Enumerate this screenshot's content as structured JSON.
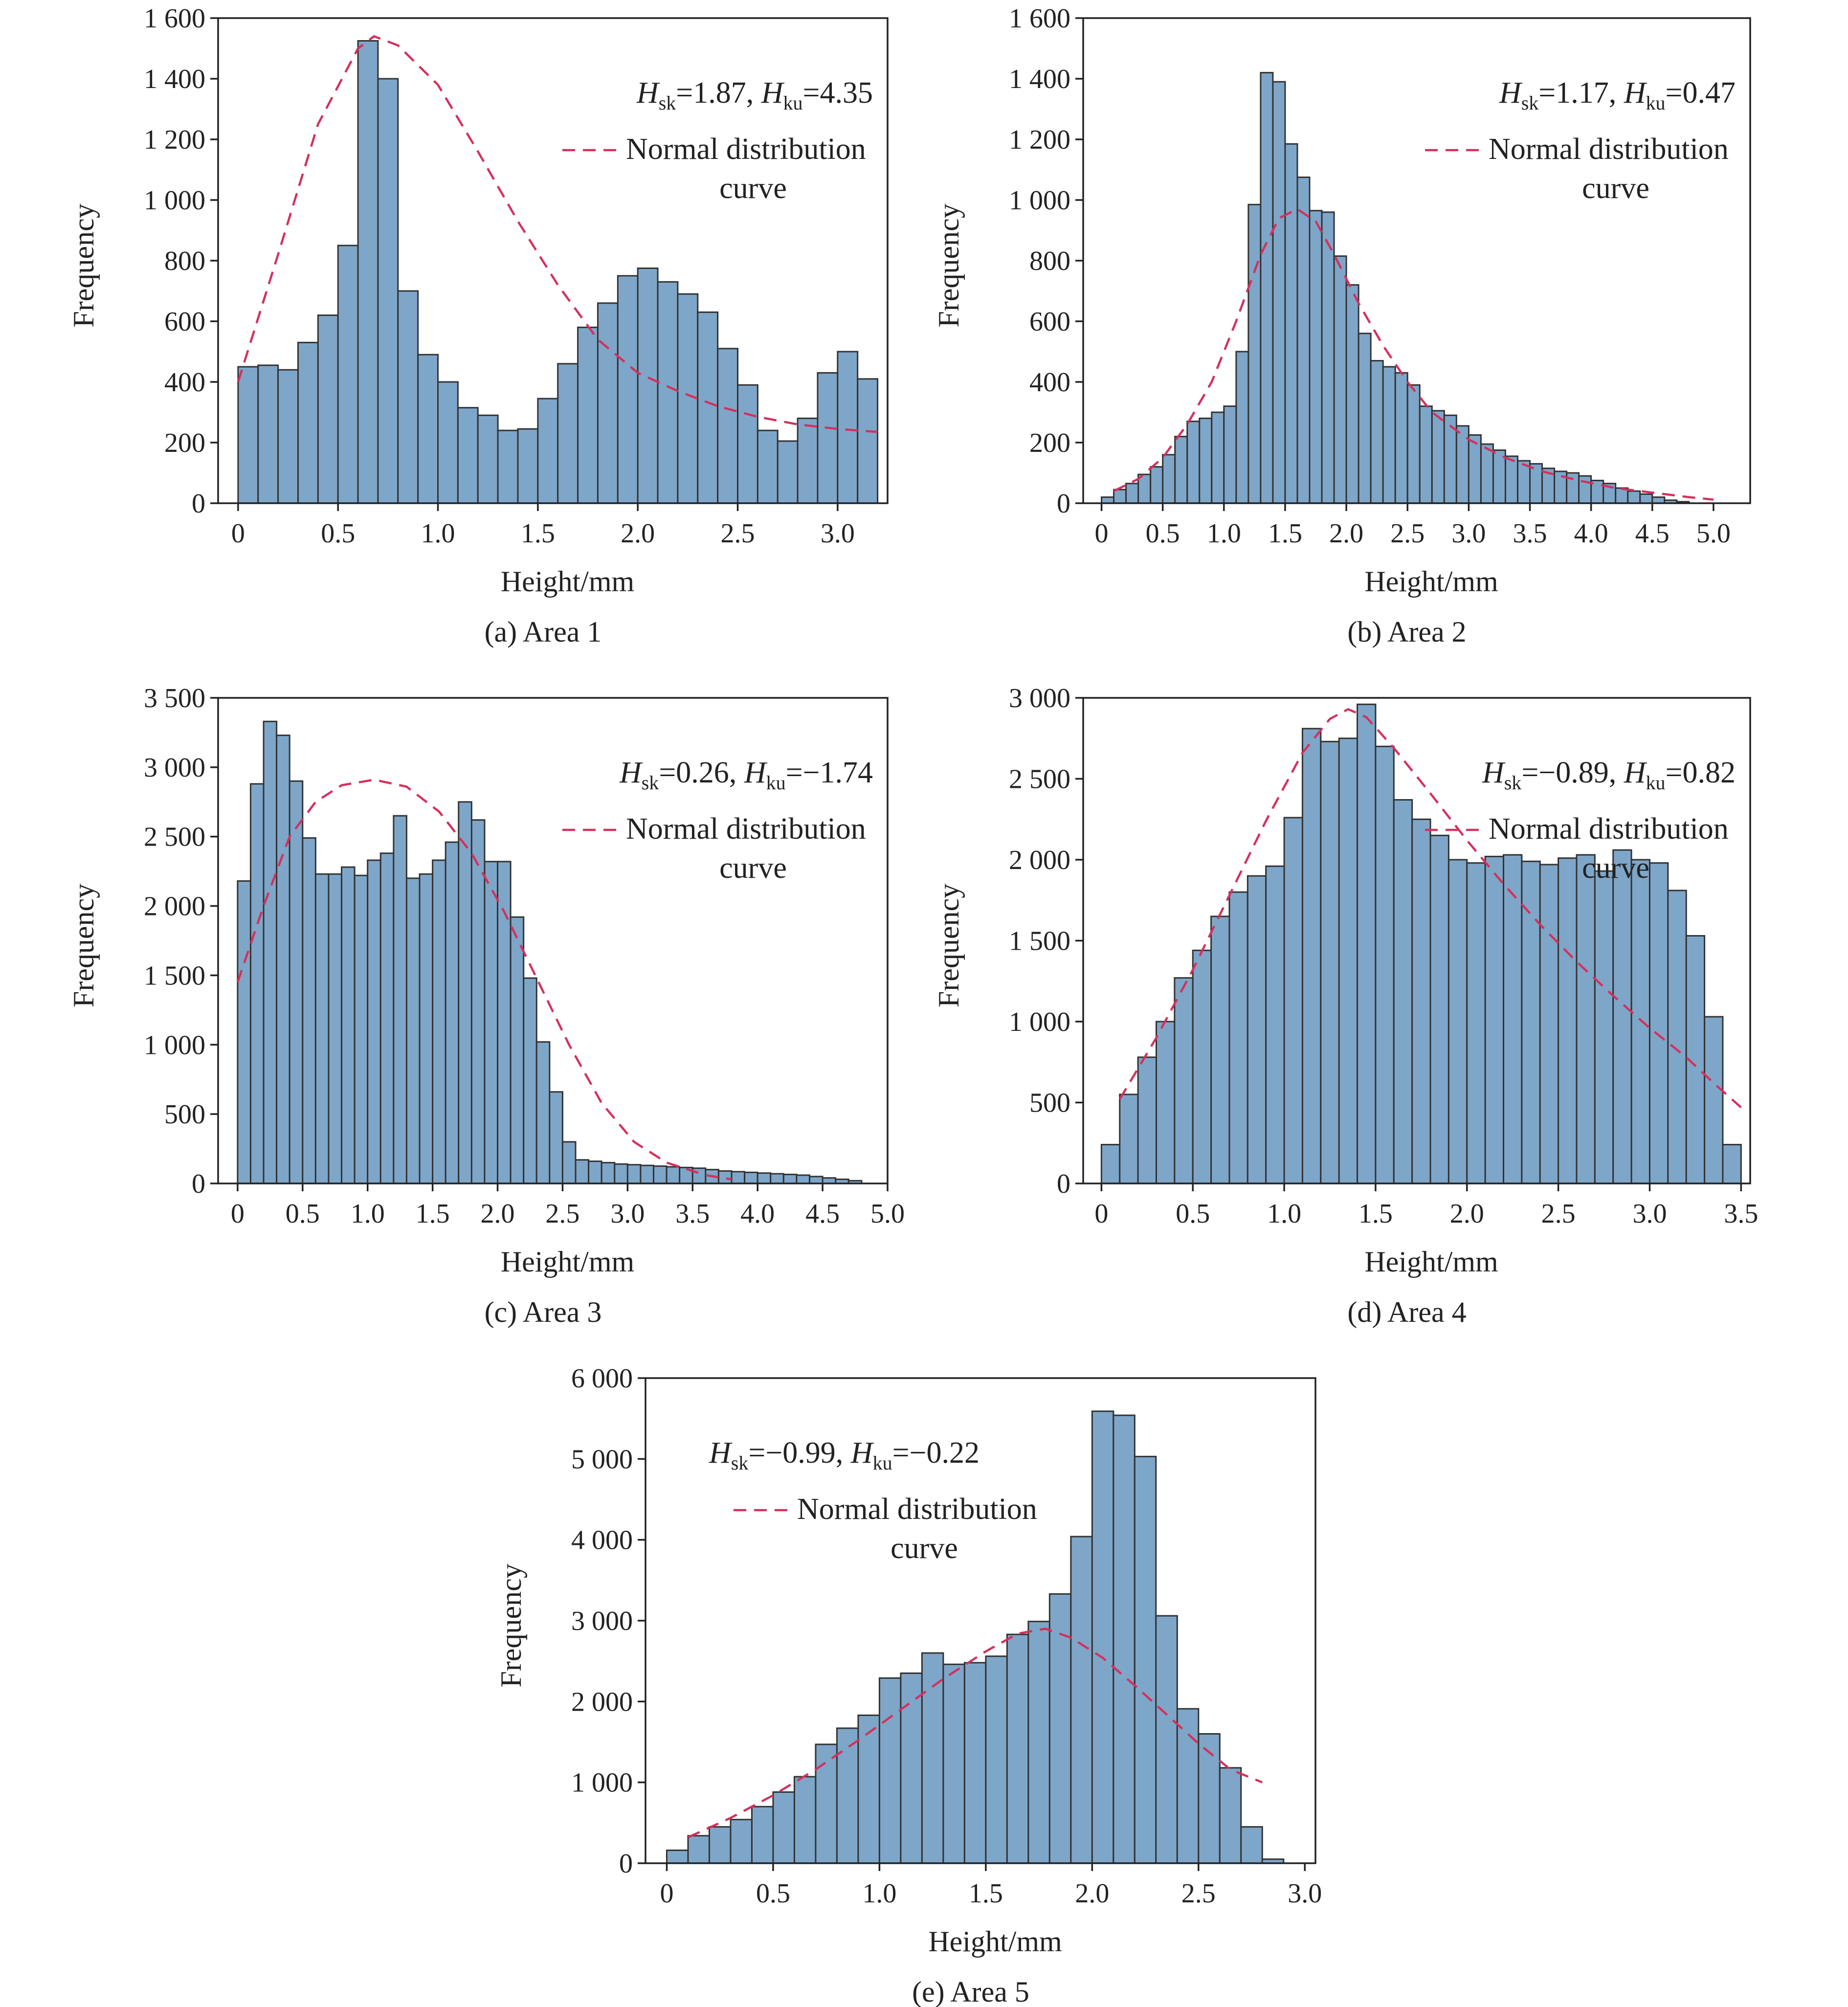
{
  "figure": {
    "legend_label_line1": "Normal distribution",
    "legend_label_line2": "curve"
  },
  "colors": {
    "bar_fill": "#7ea6c9",
    "bar_stroke": "#333333",
    "curve": "#d4305c",
    "axis": "#222222"
  },
  "chart_data": [
    {
      "type": "bar",
      "caption": "(a) Area 1",
      "xlabel": "Height/mm",
      "ylabel": "Frequency",
      "stats": {
        "sk": "1.87",
        "ku": "4.35",
        "sep": ",  "
      },
      "xlim": [
        -0.1,
        3.25
      ],
      "ylim": [
        0,
        1600
      ],
      "xticks": [
        {
          "v": 0,
          "label": "0"
        },
        {
          "v": 0.5,
          "label": "0.5"
        },
        {
          "v": 1.0,
          "label": "1.0"
        },
        {
          "v": 1.5,
          "label": "1.5"
        },
        {
          "v": 2.0,
          "label": "2.0"
        },
        {
          "v": 2.5,
          "label": "2.5"
        },
        {
          "v": 3.0,
          "label": "3.0"
        }
      ],
      "yticks": [
        {
          "v": 0,
          "label": "0"
        },
        {
          "v": 200,
          "label": "200"
        },
        {
          "v": 400,
          "label": "400"
        },
        {
          "v": 600,
          "label": "600"
        },
        {
          "v": 800,
          "label": "800"
        },
        {
          "v": 1000,
          "label": "1 000"
        },
        {
          "v": 1200,
          "label": "1 200"
        },
        {
          "v": 1400,
          "label": "1 400"
        },
        {
          "v": 1600,
          "label": "1 600"
        }
      ],
      "bin_start": 0.0,
      "bin_width": 0.1,
      "values": [
        450,
        455,
        440,
        530,
        620,
        850,
        1525,
        1400,
        700,
        490,
        400,
        315,
        290,
        240,
        245,
        345,
        460,
        580,
        660,
        750,
        775,
        730,
        690,
        630,
        510,
        390,
        240,
        205,
        280,
        430,
        500,
        410
      ],
      "curve": [
        [
          0.0,
          400
        ],
        [
          0.2,
          820
        ],
        [
          0.4,
          1250
        ],
        [
          0.6,
          1500
        ],
        [
          0.68,
          1540
        ],
        [
          0.8,
          1510
        ],
        [
          1.0,
          1380
        ],
        [
          1.2,
          1160
        ],
        [
          1.4,
          930
        ],
        [
          1.6,
          720
        ],
        [
          1.8,
          540
        ],
        [
          2.0,
          430
        ],
        [
          2.2,
          370
        ],
        [
          2.4,
          320
        ],
        [
          2.6,
          285
        ],
        [
          2.8,
          260
        ],
        [
          3.0,
          245
        ],
        [
          3.2,
          235
        ]
      ],
      "annotation_pos": "top-right"
    },
    {
      "type": "bar",
      "caption": "(b) Area 2",
      "xlabel": "Height/mm",
      "ylabel": "Frequency",
      "stats": {
        "sk": "1.17",
        "ku": "0.47",
        "sep": ",  "
      },
      "xlim": [
        -0.15,
        5.3
      ],
      "ylim": [
        0,
        1600
      ],
      "xticks": [
        {
          "v": 0,
          "label": "0"
        },
        {
          "v": 0.5,
          "label": "0.5"
        },
        {
          "v": 1.0,
          "label": "1.0"
        },
        {
          "v": 1.5,
          "label": "1.5"
        },
        {
          "v": 2.0,
          "label": "2.0"
        },
        {
          "v": 2.5,
          "label": "2.5"
        },
        {
          "v": 3.0,
          "label": "3.0"
        },
        {
          "v": 3.5,
          "label": "3.5"
        },
        {
          "v": 4.0,
          "label": "4.0"
        },
        {
          "v": 4.5,
          "label": "4.5"
        },
        {
          "v": 5.0,
          "label": "5.0"
        }
      ],
      "yticks": [
        {
          "v": 0,
          "label": "0"
        },
        {
          "v": 200,
          "label": "200"
        },
        {
          "v": 400,
          "label": "400"
        },
        {
          "v": 600,
          "label": "600"
        },
        {
          "v": 800,
          "label": "800"
        },
        {
          "v": 1000,
          "label": "1 000"
        },
        {
          "v": 1200,
          "label": "1 200"
        },
        {
          "v": 1400,
          "label": "1 400"
        },
        {
          "v": 1600,
          "label": "1 600"
        }
      ],
      "bin_start": 0.0,
      "bin_width": 0.1,
      "values": [
        20,
        45,
        65,
        95,
        120,
        160,
        220,
        270,
        280,
        300,
        320,
        500,
        985,
        1420,
        1390,
        1185,
        1075,
        965,
        960,
        815,
        720,
        560,
        470,
        450,
        430,
        390,
        320,
        305,
        290,
        255,
        225,
        195,
        175,
        155,
        140,
        130,
        115,
        105,
        100,
        90,
        75,
        65,
        50,
        40,
        30,
        20,
        10,
        5
      ],
      "curve": [
        [
          0.1,
          40
        ],
        [
          0.3,
          80
        ],
        [
          0.5,
          150
        ],
        [
          0.7,
          260
        ],
        [
          0.9,
          400
        ],
        [
          1.1,
          600
        ],
        [
          1.3,
          820
        ],
        [
          1.45,
          940
        ],
        [
          1.6,
          970
        ],
        [
          1.75,
          930
        ],
        [
          1.9,
          820
        ],
        [
          2.1,
          660
        ],
        [
          2.3,
          520
        ],
        [
          2.5,
          400
        ],
        [
          2.7,
          300
        ],
        [
          3.0,
          210
        ],
        [
          3.3,
          150
        ],
        [
          3.6,
          105
        ],
        [
          3.9,
          75
        ],
        [
          4.2,
          50
        ],
        [
          4.5,
          35
        ],
        [
          4.8,
          20
        ],
        [
          5.0,
          12
        ]
      ],
      "annotation_pos": "top-right"
    },
    {
      "type": "bar",
      "caption": "(c) Area 3",
      "xlabel": "Height/mm",
      "ylabel": "Frequency",
      "stats": {
        "sk": "0.26",
        "ku": "−1.74",
        "sep": ",  "
      },
      "xlim": [
        -0.15,
        5.0
      ],
      "ylim": [
        0,
        3500
      ],
      "xticks": [
        {
          "v": 0,
          "label": "0"
        },
        {
          "v": 0.5,
          "label": "0.5"
        },
        {
          "v": 1.0,
          "label": "1.0"
        },
        {
          "v": 1.5,
          "label": "1.5"
        },
        {
          "v": 2.0,
          "label": "2.0"
        },
        {
          "v": 2.5,
          "label": "2.5"
        },
        {
          "v": 3.0,
          "label": "3.0"
        },
        {
          "v": 3.5,
          "label": "3.5"
        },
        {
          "v": 4.0,
          "label": "4.0"
        },
        {
          "v": 4.5,
          "label": "4.5"
        },
        {
          "v": 5.0,
          "label": "5.0"
        }
      ],
      "yticks": [
        {
          "v": 0,
          "label": "0"
        },
        {
          "v": 500,
          "label": "500"
        },
        {
          "v": 1000,
          "label": "1 000"
        },
        {
          "v": 1500,
          "label": "1 500"
        },
        {
          "v": 2000,
          "label": "2 000"
        },
        {
          "v": 2500,
          "label": "2 500"
        },
        {
          "v": 3000,
          "label": "3 000"
        },
        {
          "v": 3500,
          "label": "3 500"
        }
      ],
      "bin_start": 0.0,
      "bin_width": 0.1,
      "values": [
        2180,
        2880,
        3330,
        3230,
        2900,
        2490,
        2230,
        2230,
        2280,
        2220,
        2330,
        2380,
        2650,
        2200,
        2230,
        2330,
        2460,
        2750,
        2620,
        2320,
        2320,
        1920,
        1480,
        1020,
        660,
        300,
        170,
        160,
        150,
        140,
        135,
        130,
        125,
        120,
        115,
        110,
        100,
        90,
        85,
        80,
        75,
        70,
        65,
        60,
        50,
        40,
        30,
        20
      ],
      "curve": [
        [
          0.0,
          1450
        ],
        [
          0.2,
          2000
        ],
        [
          0.4,
          2500
        ],
        [
          0.6,
          2750
        ],
        [
          0.8,
          2870
        ],
        [
          1.05,
          2910
        ],
        [
          1.3,
          2860
        ],
        [
          1.55,
          2680
        ],
        [
          1.8,
          2380
        ],
        [
          2.05,
          1960
        ],
        [
          2.3,
          1480
        ],
        [
          2.55,
          1000
        ],
        [
          2.8,
          580
        ],
        [
          3.05,
          300
        ],
        [
          3.3,
          150
        ],
        [
          3.6,
          60
        ],
        [
          3.8,
          30
        ]
      ],
      "annotation_pos": "top-right"
    },
    {
      "type": "bar",
      "caption": "(d) Area 4",
      "xlabel": "Height/mm",
      "ylabel": "Frequency",
      "stats": {
        "sk": "−0.89",
        "ku": "0.82",
        "sep": ", "
      },
      "xlim": [
        -0.1,
        3.55
      ],
      "ylim": [
        0,
        3000
      ],
      "xticks": [
        {
          "v": 0,
          "label": "0"
        },
        {
          "v": 0.5,
          "label": "0.5"
        },
        {
          "v": 1.0,
          "label": "1.0"
        },
        {
          "v": 1.5,
          "label": "1.5"
        },
        {
          "v": 2.0,
          "label": "2.0"
        },
        {
          "v": 2.5,
          "label": "2.5"
        },
        {
          "v": 3.0,
          "label": "3.0"
        },
        {
          "v": 3.5,
          "label": "3.5"
        }
      ],
      "yticks": [
        {
          "v": 0,
          "label": "0"
        },
        {
          "v": 500,
          "label": "500"
        },
        {
          "v": 1000,
          "label": "1 000"
        },
        {
          "v": 1500,
          "label": "1 500"
        },
        {
          "v": 2000,
          "label": "2 000"
        },
        {
          "v": 2500,
          "label": "2 500"
        },
        {
          "v": 3000,
          "label": "3 000"
        }
      ],
      "bin_start": 0.0,
      "bin_width": 0.1,
      "values": [
        240,
        550,
        780,
        1000,
        1270,
        1440,
        1650,
        1800,
        1900,
        1960,
        2260,
        2810,
        2730,
        2750,
        2960,
        2700,
        2370,
        2250,
        2150,
        2000,
        1980,
        2020,
        2030,
        1990,
        1970,
        2010,
        2030,
        1930,
        2060,
        2000,
        1980,
        1810,
        1530,
        1030,
        240
      ],
      "curve": [
        [
          0.1,
          520
        ],
        [
          0.3,
          900
        ],
        [
          0.5,
          1320
        ],
        [
          0.7,
          1780
        ],
        [
          0.9,
          2240
        ],
        [
          1.1,
          2660
        ],
        [
          1.25,
          2870
        ],
        [
          1.35,
          2930
        ],
        [
          1.45,
          2880
        ],
        [
          1.6,
          2690
        ],
        [
          1.8,
          2410
        ],
        [
          2.0,
          2120
        ],
        [
          2.2,
          1850
        ],
        [
          2.4,
          1600
        ],
        [
          2.6,
          1370
        ],
        [
          2.8,
          1160
        ],
        [
          3.0,
          960
        ],
        [
          3.2,
          780
        ],
        [
          3.35,
          620
        ],
        [
          3.5,
          470
        ]
      ],
      "annotation_pos": "top-right"
    },
    {
      "type": "bar",
      "caption": "(e) Area 5",
      "xlabel": "Height/mm",
      "ylabel": "Frequency",
      "stats": {
        "sk": "−0.99",
        "ku": "−0.22",
        "sep": ", "
      },
      "xlim": [
        -0.1,
        3.05
      ],
      "ylim": [
        0,
        6000
      ],
      "xticks": [
        {
          "v": 0,
          "label": "0"
        },
        {
          "v": 0.5,
          "label": "0.5"
        },
        {
          "v": 1.0,
          "label": "1.0"
        },
        {
          "v": 1.5,
          "label": "1.5"
        },
        {
          "v": 2.0,
          "label": "2.0"
        },
        {
          "v": 2.5,
          "label": "2.5"
        },
        {
          "v": 3.0,
          "label": "3.0"
        }
      ],
      "yticks": [
        {
          "v": 0,
          "label": "0"
        },
        {
          "v": 1000,
          "label": "1 000"
        },
        {
          "v": 2000,
          "label": "2 000"
        },
        {
          "v": 3000,
          "label": "3 000"
        },
        {
          "v": 4000,
          "label": "4 000"
        },
        {
          "v": 5000,
          "label": "5 000"
        },
        {
          "v": 6000,
          "label": "6 000"
        }
      ],
      "bin_start": 0.0,
      "bin_width": 0.1,
      "values": [
        160,
        340,
        450,
        540,
        700,
        880,
        1070,
        1470,
        1670,
        1830,
        2290,
        2350,
        2600,
        2460,
        2480,
        2560,
        2830,
        2990,
        3330,
        4040,
        5590,
        5540,
        5030,
        3060,
        1910,
        1600,
        1180,
        450,
        50
      ],
      "curve": [
        [
          0.1,
          320
        ],
        [
          0.3,
          560
        ],
        [
          0.5,
          840
        ],
        [
          0.7,
          1160
        ],
        [
          0.9,
          1520
        ],
        [
          1.1,
          1900
        ],
        [
          1.3,
          2280
        ],
        [
          1.5,
          2620
        ],
        [
          1.65,
          2840
        ],
        [
          1.78,
          2900
        ],
        [
          1.9,
          2790
        ],
        [
          2.05,
          2540
        ],
        [
          2.2,
          2200
        ],
        [
          2.35,
          1840
        ],
        [
          2.5,
          1480
        ],
        [
          2.65,
          1160
        ],
        [
          2.8,
          1000
        ]
      ],
      "annotation_pos": "top-left"
    }
  ]
}
